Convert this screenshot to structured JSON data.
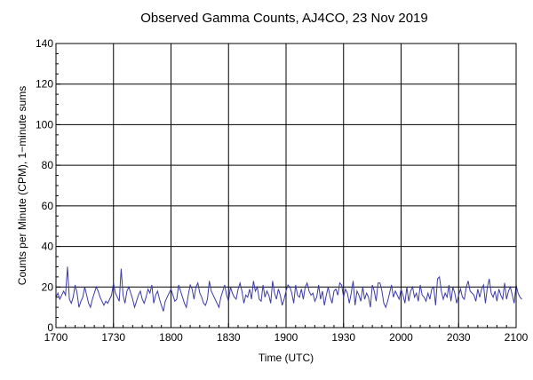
{
  "chart_data": {
    "type": "line",
    "title": "Observed Gamma Counts, AJ4CO, 23 Nov 2019",
    "xlabel": "Time (UTC)",
    "ylabel": "Counts per Minute (CPM), 1−minute sums",
    "x_tick_labels": [
      "1700",
      "1730",
      "1800",
      "1830",
      "1900",
      "1930",
      "2000",
      "2030",
      "2100"
    ],
    "y_ticks": [
      0,
      20,
      40,
      60,
      80,
      100,
      120,
      140
    ],
    "ylim": [
      0,
      140
    ],
    "xlim_minutes": [
      0,
      240
    ],
    "grid": true,
    "series": [
      {
        "color": "#3b3ba8",
        "x_start": "1700",
        "x_step_minutes": 1,
        "values": [
          15,
          17,
          14,
          16,
          18,
          16,
          30,
          14,
          12,
          15,
          21,
          17,
          10,
          13,
          15,
          20,
          16,
          12,
          10,
          14,
          17,
          20,
          18,
          15,
          13,
          11,
          13,
          12,
          14,
          16,
          22,
          17,
          15,
          13,
          29,
          16,
          12,
          18,
          20,
          17,
          14,
          10,
          13,
          16,
          18,
          14,
          12,
          15,
          19,
          17,
          21,
          12,
          16,
          18,
          14,
          11,
          8,
          13,
          15,
          17,
          19,
          16,
          13,
          14,
          21,
          18,
          15,
          12,
          10,
          16,
          21,
          19,
          14,
          20,
          22,
          17,
          15,
          12,
          11,
          14,
          23,
          18,
          16,
          14,
          12,
          10,
          15,
          18,
          21,
          16,
          13,
          20,
          17,
          15,
          14,
          19,
          22,
          18,
          12,
          16,
          15,
          19,
          14,
          23,
          18,
          20,
          14,
          13,
          21,
          15,
          18,
          16,
          12,
          23,
          17,
          14,
          19,
          16,
          11,
          14,
          18,
          21,
          20,
          17,
          12,
          21,
          16,
          15,
          19,
          14,
          20,
          22,
          18,
          16,
          17,
          13,
          15,
          21,
          14,
          18,
          11,
          16,
          20,
          15,
          12,
          18,
          19,
          16,
          22,
          21,
          15,
          19,
          17,
          12,
          17,
          23,
          11,
          18,
          16,
          13,
          20,
          14,
          17,
          15,
          10,
          21,
          18,
          13,
          22,
          22,
          18,
          12,
          10,
          13,
          17,
          21,
          15,
          18,
          16,
          14,
          19,
          16,
          12,
          20,
          13,
          18,
          20,
          15,
          17,
          13,
          21,
          16,
          15,
          13,
          17,
          14,
          19,
          20,
          11,
          24,
          25,
          18,
          14,
          17,
          15,
          21,
          13,
          20,
          17,
          12,
          16,
          19,
          15,
          14,
          20,
          23,
          18,
          17,
          16,
          13,
          19,
          15,
          19,
          21,
          12,
          20,
          24,
          17,
          15,
          18,
          13,
          19,
          16,
          14,
          22,
          14,
          18,
          20,
          16,
          12,
          21,
          17,
          15,
          14
        ]
      }
    ]
  }
}
